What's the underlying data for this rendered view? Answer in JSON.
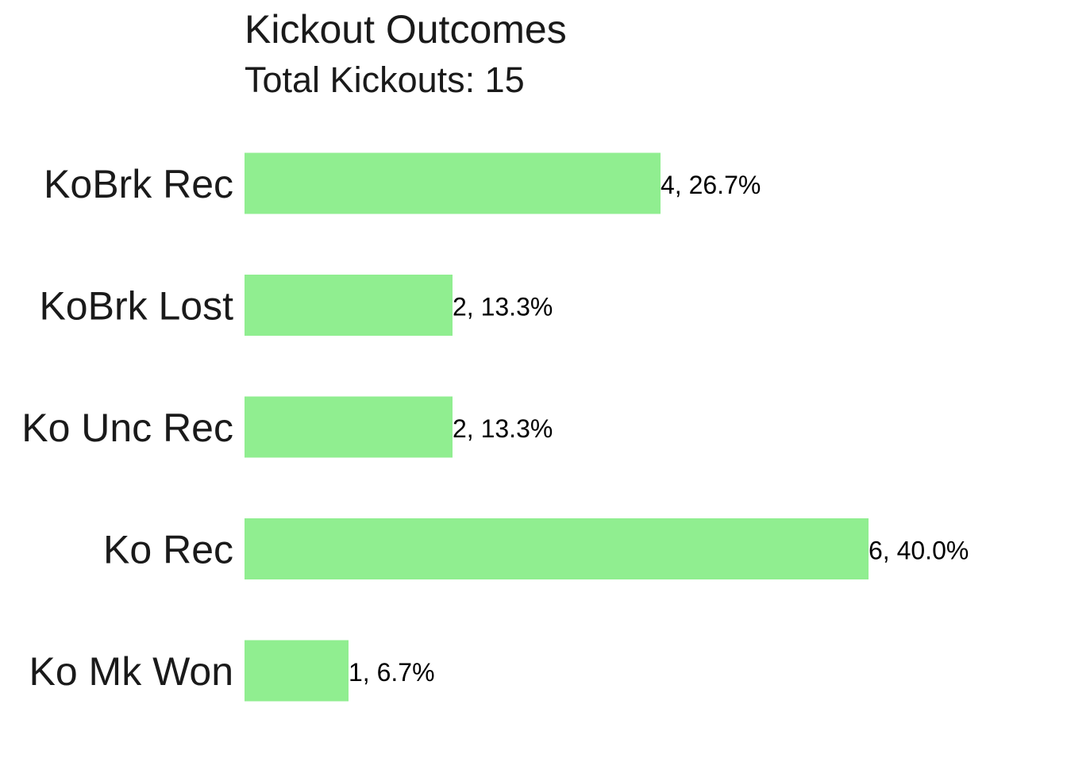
{
  "chart_data": {
    "type": "bar",
    "orientation": "horizontal",
    "title": "Kickout Outcomes",
    "subtitle": "Total Kickouts: 15",
    "xlabel": "",
    "ylabel": "",
    "grid": false,
    "legend": "none",
    "categories": [
      "KoBrk Rec",
      "KoBrk Lost",
      "Ko Unc Rec",
      "Ko Rec",
      "Ko Mk Won"
    ],
    "values": [
      4,
      2,
      2,
      6,
      1
    ],
    "data_labels": [
      "4, 26.7%",
      "2, 13.3%",
      "2, 13.3%",
      "6, 40.0%",
      "1, 6.7%"
    ],
    "xlim": [
      0,
      6
    ],
    "bar_color": "#90EE90"
  }
}
